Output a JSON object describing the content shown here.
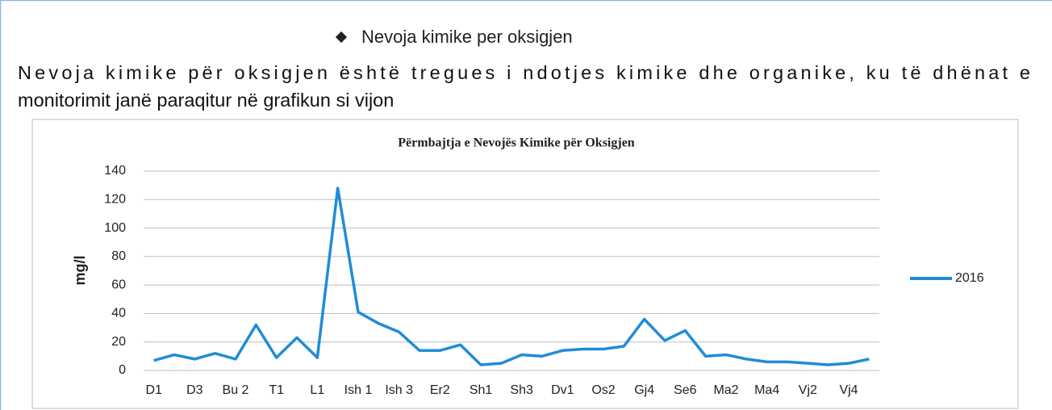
{
  "heading": "Nevoja kimike per oksigjen",
  "paragraph": [
    "Nevoja kimike për oksigjen është tregues i ndotjes kimike dhe organike, ku të dhënat e",
    "monitorimit janë paraqitur në grafikun si vijon"
  ],
  "chart_data": {
    "type": "line",
    "title": "Përmbajtja e Nevojës Kimike për Oksigjen",
    "y_label": "mg/l",
    "categories": [
      "D1",
      null,
      "D3",
      null,
      "Bu 2",
      null,
      "T1",
      null,
      "L1",
      null,
      "Ish 1",
      null,
      "Ish 3",
      null,
      "Er2",
      null,
      "Sh1",
      null,
      "Sh3",
      null,
      "Dv1",
      null,
      "Os2",
      null,
      "Gj4",
      null,
      "Se6",
      null,
      "Ma2",
      null,
      "Ma4",
      null,
      "Vj2",
      null,
      "Vj4",
      null
    ],
    "series": [
      {
        "name": "2016",
        "color": "#1f8dd6",
        "values": [
          7,
          11,
          8,
          12,
          8,
          32,
          9,
          23,
          9,
          128,
          41,
          33,
          27,
          14,
          14,
          18,
          4,
          5,
          11,
          10,
          14,
          15,
          15,
          17,
          36,
          21,
          28,
          10,
          11,
          8,
          6,
          6,
          5,
          4,
          5,
          8
        ]
      }
    ],
    "ylim": [
      0,
      140
    ],
    "yticks": [
      0,
      20,
      40,
      60,
      80,
      100,
      120,
      140
    ],
    "grid": true,
    "legend": "right"
  }
}
